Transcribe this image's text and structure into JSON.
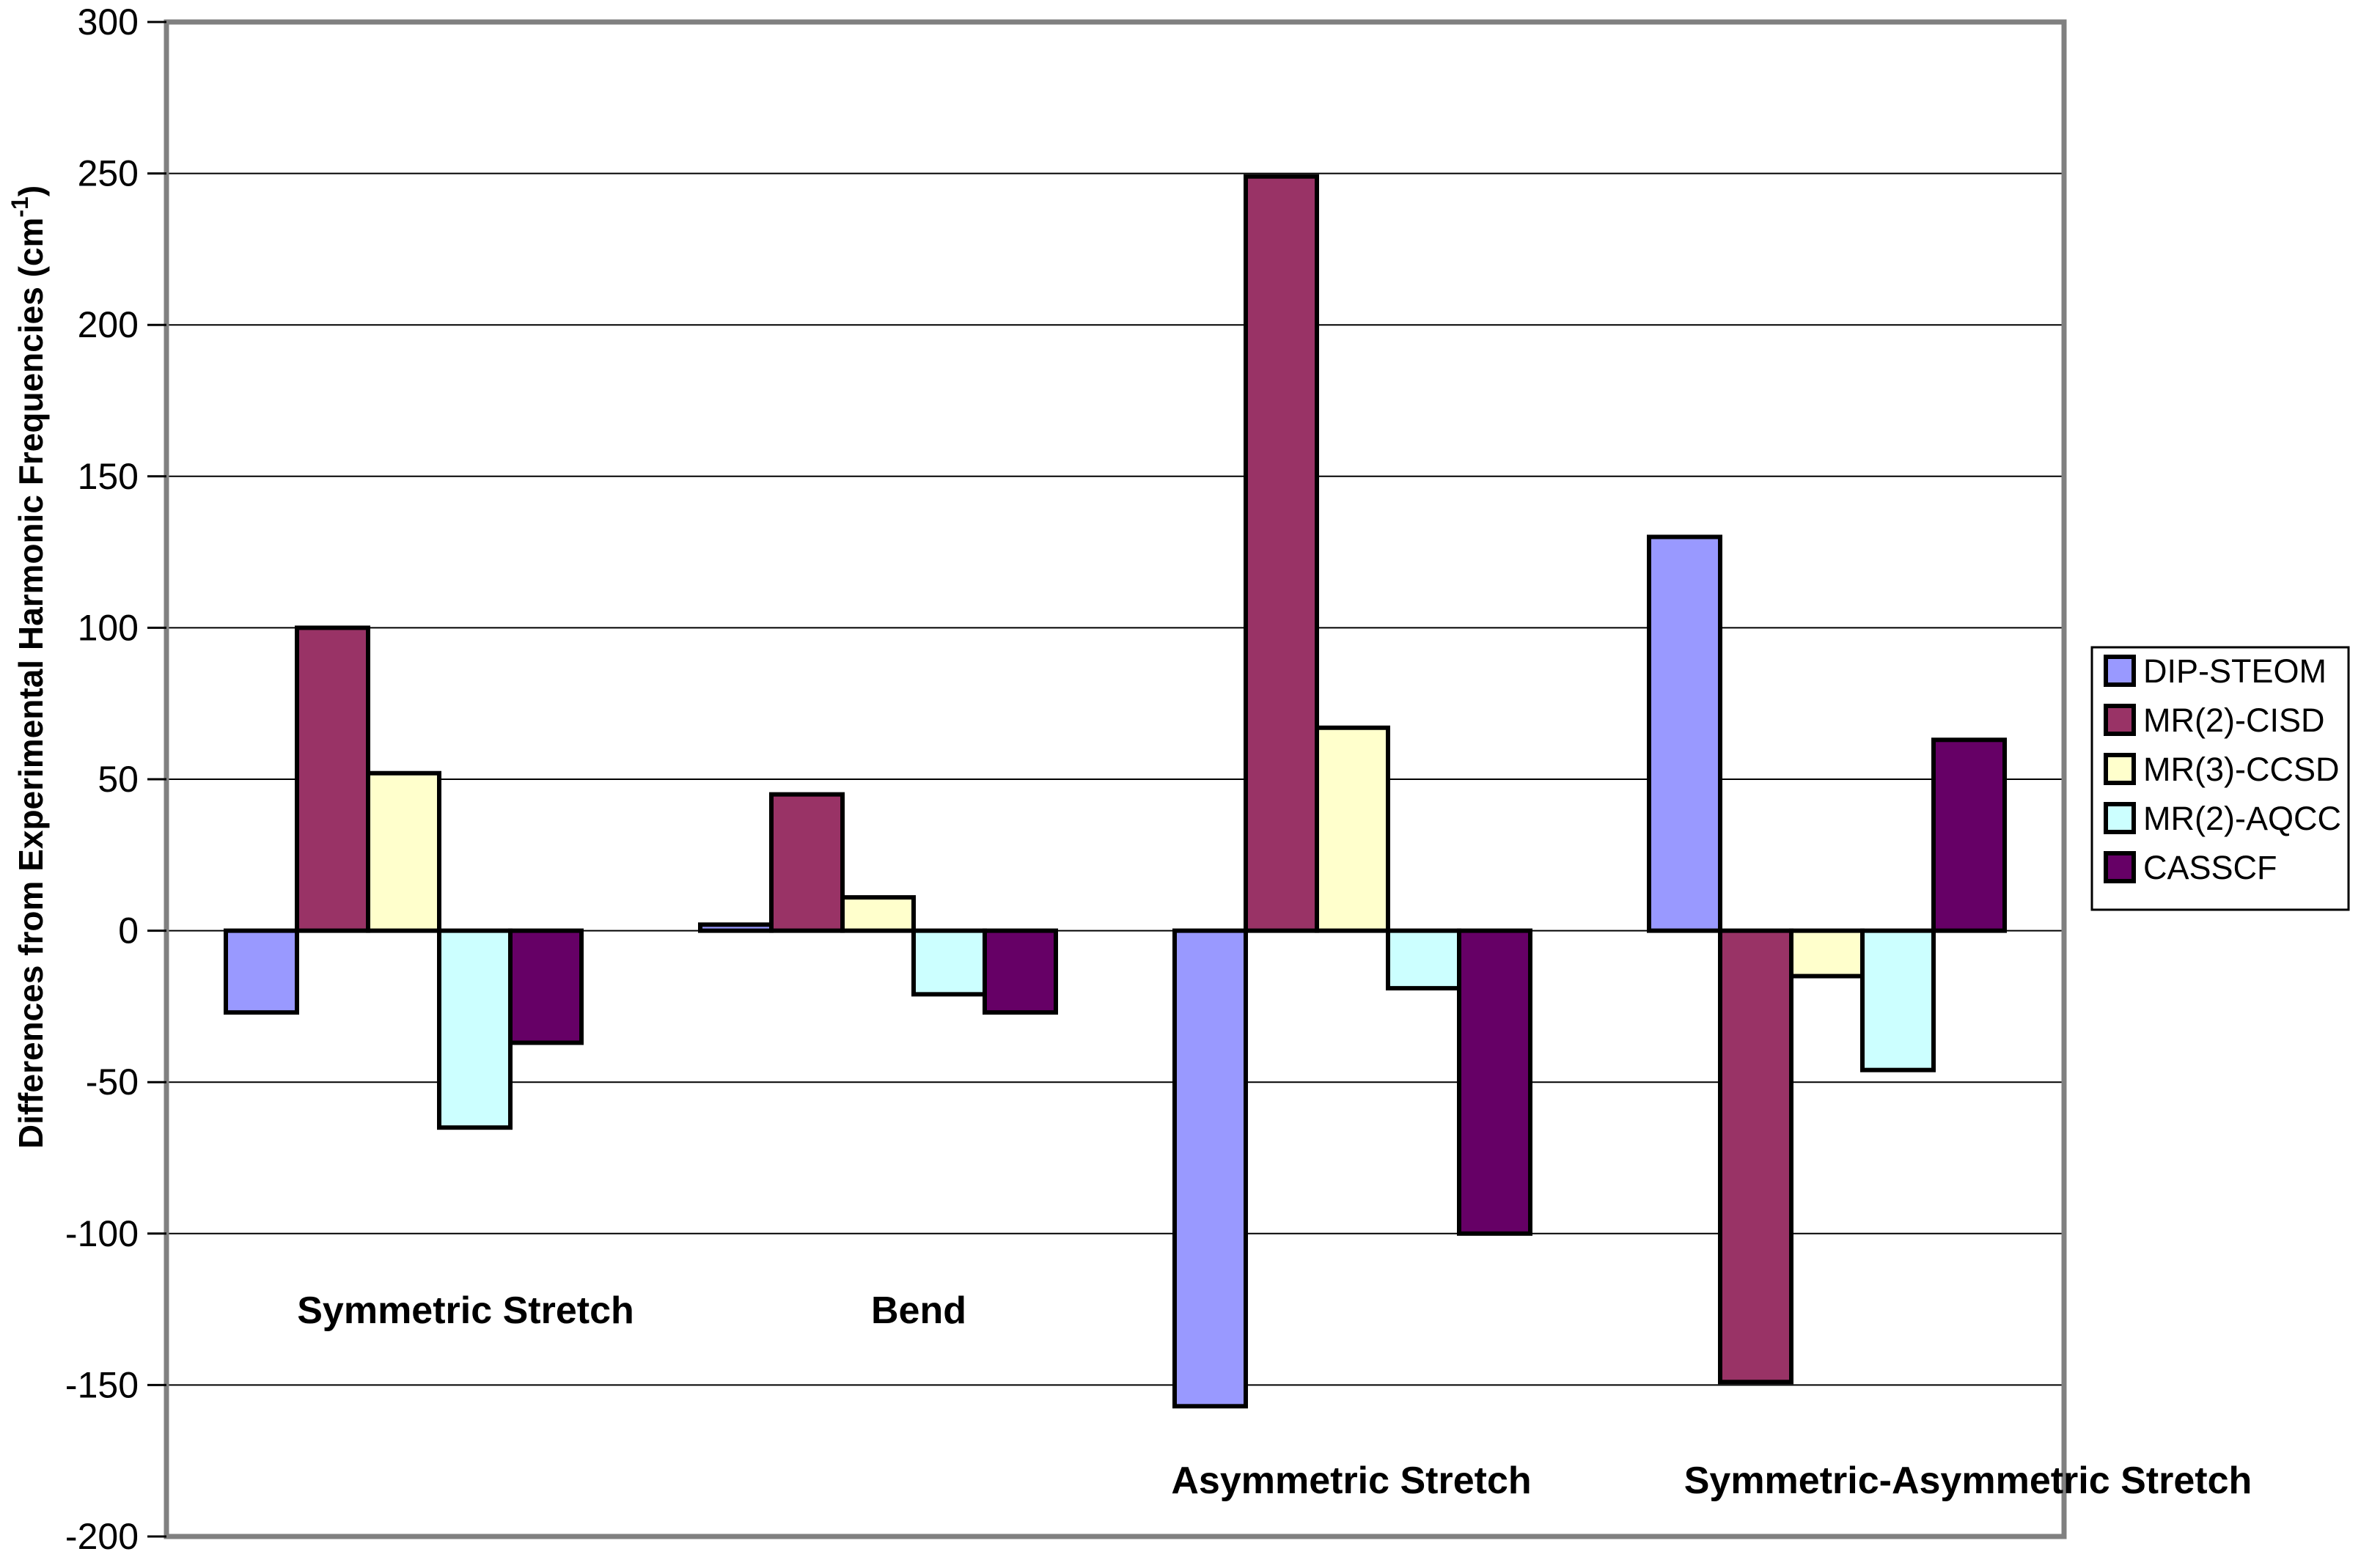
{
  "chart_data": {
    "type": "bar",
    "title": "",
    "xlabel": "",
    "ylabel": "Differences from Experimental Harmonic Frequencies (cm-1)",
    "ylabel_parts": {
      "pre": "Differences from Experimental Harmonic Frequencies (cm",
      "sup": "-1",
      "post": ")"
    },
    "categories": [
      "Symmetric Stretch",
      "Bend",
      "Asymmetric Stretch",
      "Symmetric-Asymmetric Stretch"
    ],
    "series": [
      {
        "name": "DIP-STEOM",
        "color": "#9999FF",
        "values": [
          -27,
          2,
          -157,
          130
        ]
      },
      {
        "name": "MR(2)-CISD",
        "color": "#993366",
        "values": [
          100,
          45,
          249,
          -149
        ]
      },
      {
        "name": "MR(3)-CCSD",
        "color": "#FFFFCC",
        "values": [
          52,
          11,
          67,
          -15
        ]
      },
      {
        "name": "MR(2)-AQCC",
        "color": "#CCFFFF",
        "values": [
          -65,
          -21,
          -19,
          -46
        ]
      },
      {
        "name": "CASSCF",
        "color": "#660066",
        "values": [
          -37,
          -27,
          -100,
          63
        ]
      }
    ],
    "ylim": [
      -200,
      300
    ],
    "ytick_step": 50,
    "yticks": [
      300,
      250,
      200,
      150,
      100,
      50,
      0,
      -50,
      -100,
      -150,
      -200
    ],
    "grid": "horizontal",
    "legend_position": "right",
    "category_label_rows": [
      0,
      0,
      1,
      1
    ],
    "colors": {
      "background": "#FFFFFF",
      "plot_border": "#808080",
      "gridline": "#000000",
      "bar_outline": "#000000",
      "text": "#000000"
    }
  }
}
